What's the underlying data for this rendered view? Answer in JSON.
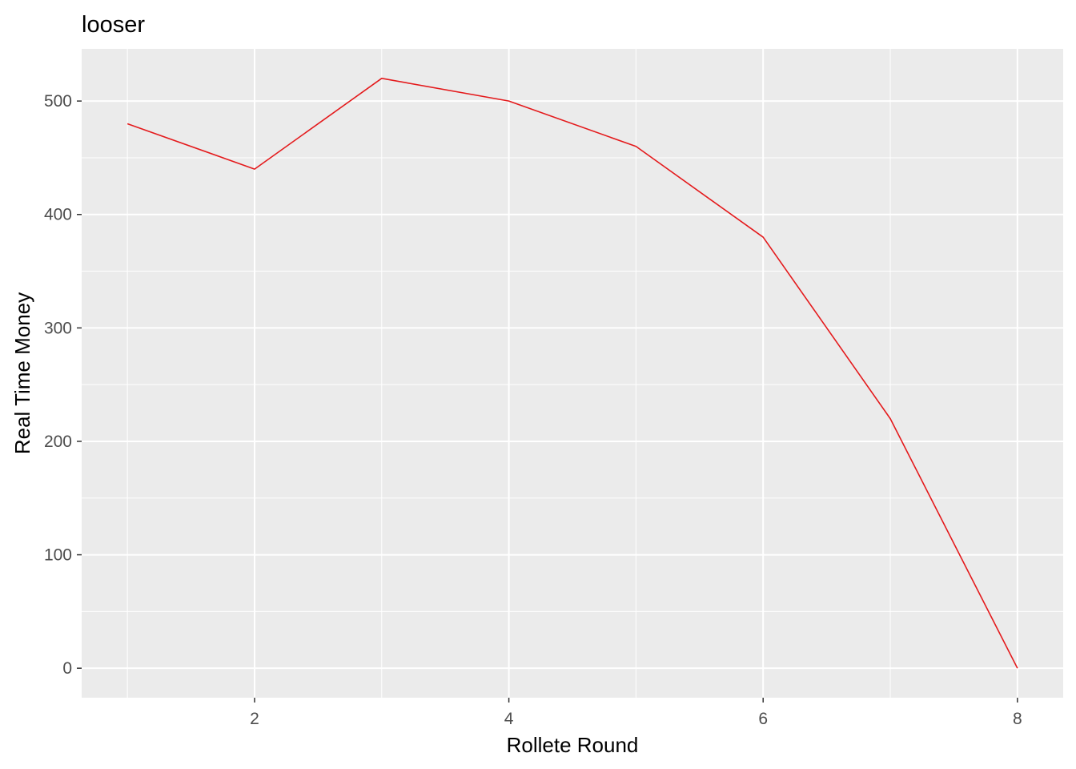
{
  "chart_data": {
    "type": "line",
    "title": "looser",
    "xlabel": "Rollete Round",
    "ylabel": "Real Time Money",
    "xlim": [
      0.64,
      8.36
    ],
    "ylim": [
      -26,
      546
    ],
    "x_major_ticks": [
      2,
      4,
      6,
      8
    ],
    "x_minor_ticks": [
      1,
      3,
      5,
      7
    ],
    "y_major_ticks": [
      0,
      100,
      200,
      300,
      400,
      500
    ],
    "y_minor_ticks": [
      50,
      150,
      250,
      350,
      450
    ],
    "x_tick_labels": [
      "2",
      "4",
      "6",
      "8"
    ],
    "y_tick_labels": [
      "0",
      "100",
      "200",
      "300",
      "400",
      "500"
    ],
    "grid": true,
    "panel_background": "#ebebeb",
    "grid_color": "#ffffff",
    "series": [
      {
        "color": "#e41a1c",
        "x": [
          1,
          2,
          3,
          4,
          5,
          6,
          7,
          8
        ],
        "y": [
          480,
          440,
          520,
          500,
          460,
          380,
          220,
          0
        ]
      }
    ]
  }
}
